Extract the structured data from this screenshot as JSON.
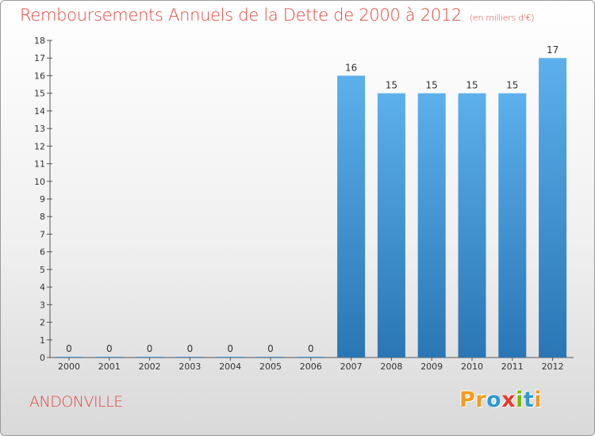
{
  "chart_data": {
    "type": "bar",
    "title": "Remboursements Annuels de la Dette de 2000 à 2012",
    "unit_note": "(en milliers d'€)",
    "categories": [
      "2000",
      "2001",
      "2002",
      "2003",
      "2004",
      "2005",
      "2006",
      "2007",
      "2008",
      "2009",
      "2010",
      "2011",
      "2012"
    ],
    "values": [
      0,
      0,
      0,
      0,
      0,
      0,
      0,
      16,
      15,
      15,
      15,
      15,
      17
    ],
    "data_labels": [
      "0",
      "0",
      "0",
      "0",
      "0",
      "0",
      "0",
      "16",
      "15",
      "15",
      "15",
      "15",
      "17"
    ],
    "ylim": [
      0,
      18
    ],
    "yticks": [
      "0",
      "1",
      "2",
      "3",
      "4",
      "5",
      "6",
      "7",
      "8",
      "9",
      "10",
      "11",
      "12",
      "13",
      "14",
      "15",
      "16",
      "17",
      "18"
    ],
    "grid": false,
    "legend": "none",
    "bar_color": "#3a8fd4"
  },
  "footer": {
    "commune": "ANDONVILLE",
    "logo_parts": [
      {
        "text": "Pr",
        "color": "#f39c1f"
      },
      {
        "text": "o",
        "color": "#2e9ad0"
      },
      {
        "text": "x",
        "color": "#e53b2c"
      },
      {
        "text": "i",
        "color": "#7ab800"
      },
      {
        "text": "t",
        "color": "#2e9ad0"
      },
      {
        "text": "i",
        "color": "#f39c1f"
      }
    ]
  }
}
